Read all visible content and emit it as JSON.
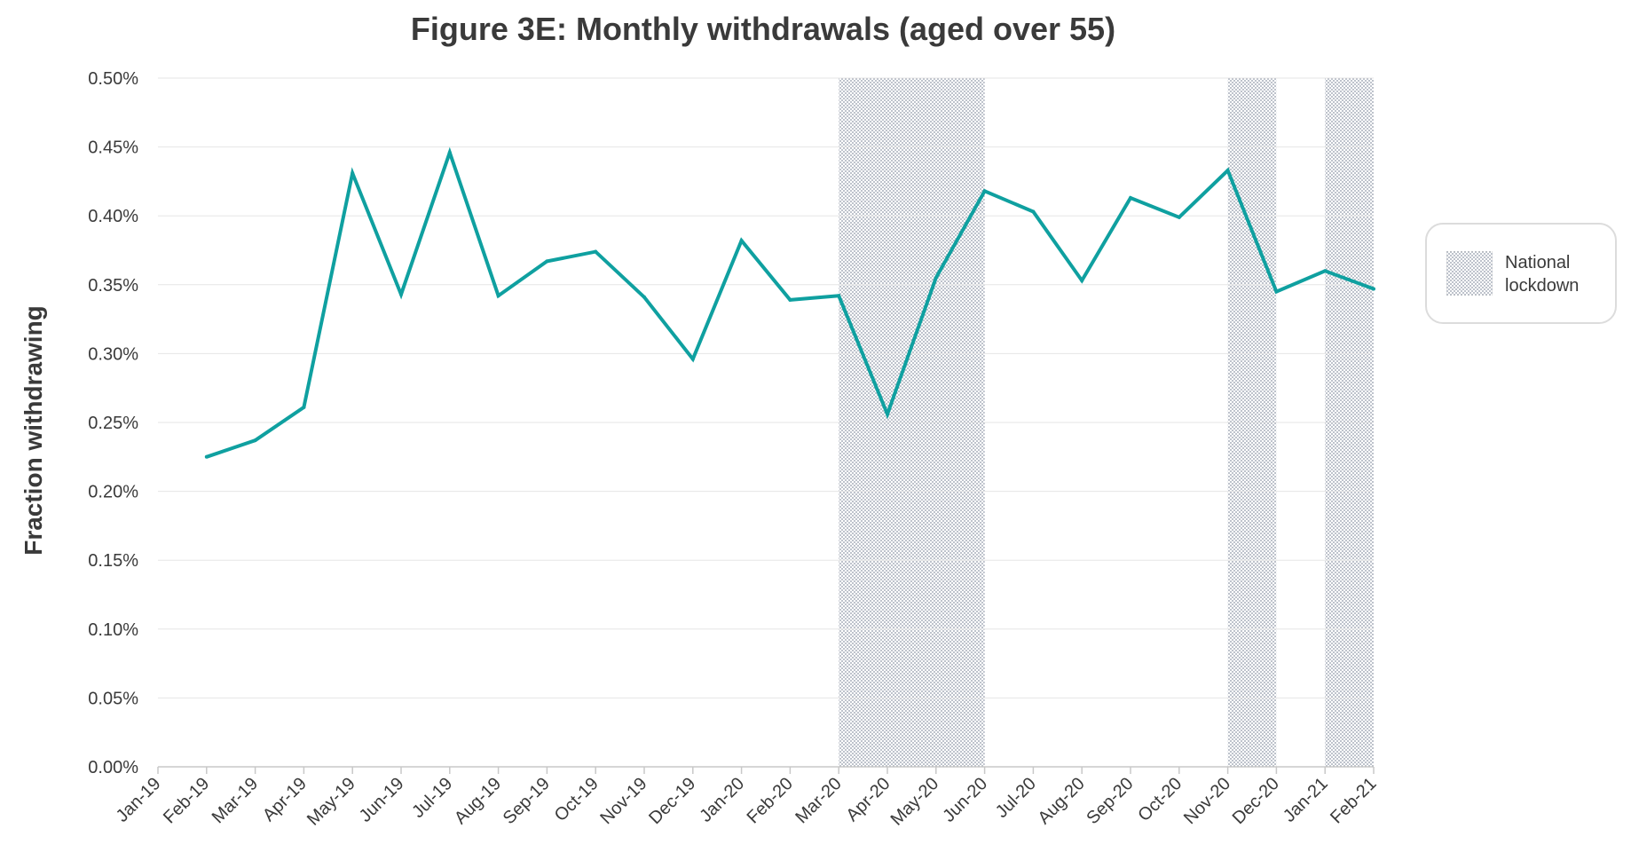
{
  "chart_data": {
    "type": "line",
    "title": "Figure 3E: Monthly withdrawals (aged over 55)",
    "xlabel": "",
    "ylabel": "Fraction withdrawing",
    "categories": [
      "Jan-19",
      "Feb-19",
      "Mar-19",
      "Apr-19",
      "May-19",
      "Jun-19",
      "Jul-19",
      "Aug-19",
      "Sep-19",
      "Oct-19",
      "Nov-19",
      "Dec-19",
      "Jan-20",
      "Feb-20",
      "Mar-20",
      "Apr-20",
      "May-20",
      "Jun-20",
      "Jul-20",
      "Aug-20",
      "Sep-20",
      "Oct-20",
      "Nov-20",
      "Dec-20",
      "Jan-21",
      "Feb-21"
    ],
    "y_ticks": [
      "0.00%",
      "0.05%",
      "0.10%",
      "0.15%",
      "0.20%",
      "0.25%",
      "0.30%",
      "0.35%",
      "0.40%",
      "0.45%",
      "0.50%"
    ],
    "ylim": [
      0,
      0.5
    ],
    "series": [
      {
        "values": [
          null,
          0.225,
          0.237,
          0.261,
          0.431,
          0.343,
          0.446,
          0.342,
          0.367,
          0.374,
          0.341,
          0.296,
          0.382,
          0.339,
          0.342,
          0.256,
          0.355,
          0.418,
          0.403,
          0.353,
          0.413,
          0.399,
          0.433,
          0.345,
          0.36,
          0.347
        ],
        "color": "#0fa0a0"
      }
    ],
    "shaded_periods": [
      {
        "start": "Mar-20",
        "end": "Jun-20"
      },
      {
        "start": "Nov-20",
        "end": "Dec-20"
      },
      {
        "start": "Jan-21",
        "end": "Feb-21"
      }
    ],
    "legend": {
      "position": "right",
      "label": "National lockdown"
    },
    "grid": "horizontal",
    "colors": {
      "line": "#0fa0a0",
      "gridline": "#e6e6e6",
      "shade_dots": "#9098a8",
      "text": "#3a3a3a"
    }
  }
}
